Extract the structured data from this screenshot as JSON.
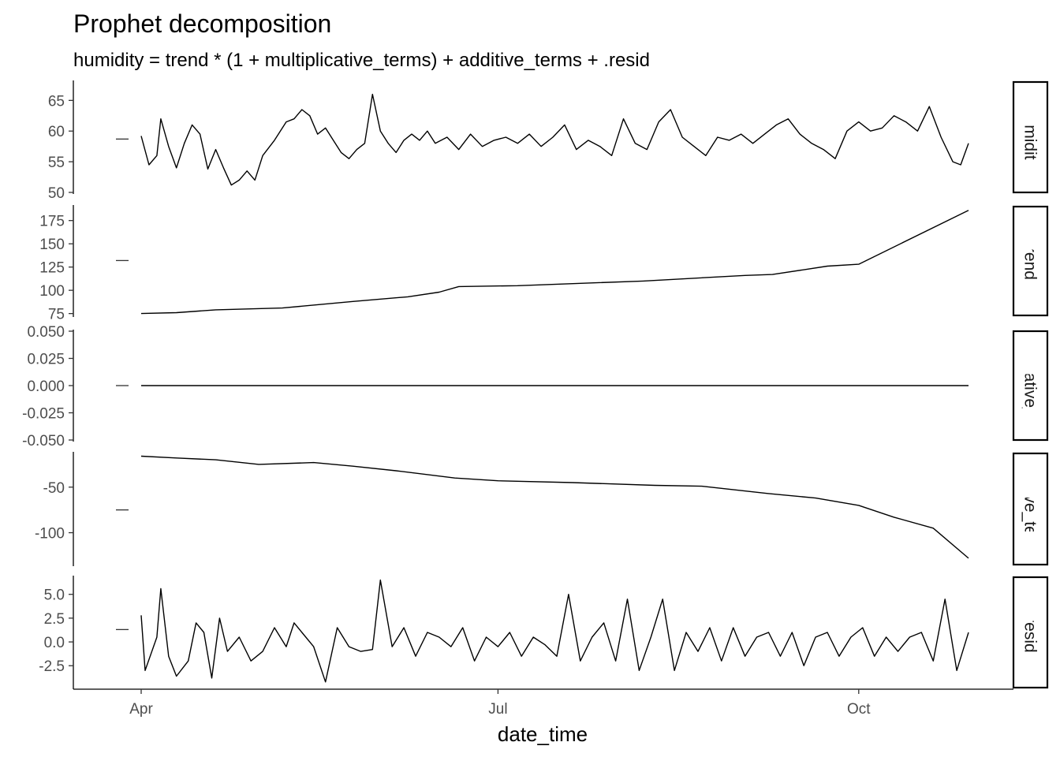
{
  "chart_data": {
    "type": "line",
    "title": "Prophet decomposition",
    "subtitle": "humidity = trend * (1 + multiplicative_terms) + additive_terms + .resid",
    "xlabel": "date_time",
    "x_range": [
      "2021-04-01",
      "2021-10-29"
    ],
    "x_ticks": [
      {
        "date": "2021-04-01",
        "label": "Apr"
      },
      {
        "date": "2021-07-01",
        "label": "Jul"
      },
      {
        "date": "2021-10-01",
        "label": "Oct"
      }
    ],
    "legend": "none",
    "grid": false,
    "facets": [
      {
        "strip": "humidity",
        "ylim": [
          50,
          68
        ],
        "y_ticks": [
          {
            "v": 50,
            "label": "50"
          },
          {
            "v": 55,
            "label": "55"
          },
          {
            "v": 60,
            "label": "60"
          },
          {
            "v": 65,
            "label": "65"
          }
        ],
        "range_marker": 58.7,
        "series": [
          {
            "x": [
              "2021-04-01",
              "2021-04-03",
              "2021-04-05",
              "2021-04-06",
              "2021-04-08",
              "2021-04-10",
              "2021-04-12",
              "2021-04-14",
              "2021-04-16",
              "2021-04-18",
              "2021-04-20",
              "2021-04-22",
              "2021-04-24",
              "2021-04-26",
              "2021-04-28",
              "2021-04-30",
              "2021-05-02",
              "2021-05-05",
              "2021-05-08",
              "2021-05-10",
              "2021-05-12",
              "2021-05-14",
              "2021-05-16",
              "2021-05-18",
              "2021-05-20",
              "2021-05-22",
              "2021-05-24",
              "2021-05-26",
              "2021-05-28",
              "2021-05-30",
              "2021-06-01",
              "2021-06-03",
              "2021-06-05",
              "2021-06-07",
              "2021-06-09",
              "2021-06-11",
              "2021-06-13",
              "2021-06-15",
              "2021-06-18",
              "2021-06-21",
              "2021-06-24",
              "2021-06-27",
              "2021-06-30",
              "2021-07-03",
              "2021-07-06",
              "2021-07-09",
              "2021-07-12",
              "2021-07-15",
              "2021-07-18",
              "2021-07-21",
              "2021-07-24",
              "2021-07-27",
              "2021-07-30",
              "2021-08-02",
              "2021-08-05",
              "2021-08-08",
              "2021-08-11",
              "2021-08-14",
              "2021-08-17",
              "2021-08-20",
              "2021-08-23",
              "2021-08-26",
              "2021-08-29",
              "2021-09-01",
              "2021-09-04",
              "2021-09-07",
              "2021-09-10",
              "2021-09-13",
              "2021-09-16",
              "2021-09-19",
              "2021-09-22",
              "2021-09-25",
              "2021-09-28",
              "2021-10-01",
              "2021-10-04",
              "2021-10-07",
              "2021-10-10",
              "2021-10-13",
              "2021-10-16",
              "2021-10-19",
              "2021-10-22",
              "2021-10-25",
              "2021-10-27",
              "2021-10-29"
            ],
            "y": [
              59.2,
              54.5,
              56.0,
              62.0,
              57.5,
              54.0,
              58.0,
              61.0,
              59.5,
              53.8,
              57.0,
              54.0,
              51.2,
              52.0,
              53.5,
              52.0,
              56.0,
              58.5,
              61.5,
              62.0,
              63.5,
              62.5,
              59.5,
              60.5,
              58.5,
              56.5,
              55.5,
              57.0,
              58.0,
              66.0,
              60.0,
              58.0,
              56.5,
              58.5,
              59.5,
              58.5,
              60.0,
              58.0,
              59.0,
              57.0,
              59.5,
              57.5,
              58.5,
              59.0,
              58.0,
              59.5,
              57.5,
              59.0,
              61.0,
              57.0,
              58.5,
              57.5,
              56.0,
              62.0,
              58.0,
              57.0,
              61.5,
              63.5,
              59.0,
              57.5,
              56.0,
              59.0,
              58.5,
              59.5,
              58.0,
              59.5,
              61.0,
              62.0,
              59.5,
              58.0,
              57.0,
              55.5,
              60.0,
              61.5,
              60.0,
              60.5,
              62.5,
              61.5,
              60.0,
              64.0,
              59.0,
              55.0,
              54.5,
              58.0
            ]
          }
        ]
      },
      {
        "strip": "trend",
        "ylim": [
          73,
          190
        ],
        "y_ticks": [
          {
            "v": 75,
            "label": "75"
          },
          {
            "v": 100,
            "label": "100"
          },
          {
            "v": 125,
            "label": "125"
          },
          {
            "v": 150,
            "label": "150"
          },
          {
            "v": 175,
            "label": "175"
          }
        ],
        "range_marker": 132,
        "series": [
          {
            "x": [
              "2021-04-01",
              "2021-04-10",
              "2021-04-20",
              "2021-05-07",
              "2021-05-25",
              "2021-06-08",
              "2021-06-16",
              "2021-06-21",
              "2021-07-06",
              "2021-08-07",
              "2021-09-02",
              "2021-09-09",
              "2021-09-23",
              "2021-10-01",
              "2021-10-29"
            ],
            "y": [
              75,
              76,
              79,
              81,
              88,
              93,
              98,
              104,
              105,
              110,
              116,
              117,
              126,
              128,
              186
            ]
          }
        ]
      },
      {
        "strip": "multiplicative_terms",
        "ylim": [
          -0.05,
          0.05
        ],
        "y_ticks": [
          {
            "v": -0.05,
            "label": "-0.050"
          },
          {
            "v": -0.025,
            "label": "-0.025"
          },
          {
            "v": 0,
            "label": "0.000"
          },
          {
            "v": 0.025,
            "label": "0.025"
          },
          {
            "v": 0.05,
            "label": "0.050"
          }
        ],
        "range_marker": 0,
        "series": [
          {
            "x": [
              "2021-04-01",
              "2021-10-29"
            ],
            "y": [
              0,
              0
            ]
          }
        ]
      },
      {
        "strip": "additive_terms",
        "ylim": [
          -135,
          -13
        ],
        "y_ticks": [
          {
            "v": -100,
            "label": "-100"
          },
          {
            "v": -50,
            "label": "-50"
          }
        ],
        "range_marker": -75,
        "series": [
          {
            "x": [
              "2021-04-01",
              "2021-04-10",
              "2021-04-20",
              "2021-05-01",
              "2021-05-15",
              "2021-05-25",
              "2021-06-05",
              "2021-06-20",
              "2021-07-01",
              "2021-07-20",
              "2021-08-10",
              "2021-08-22",
              "2021-09-08",
              "2021-09-20",
              "2021-10-01",
              "2021-10-10",
              "2021-10-20",
              "2021-10-29"
            ],
            "y": [
              -16,
              -18,
              -20,
              -25,
              -23,
              -27,
              -32,
              -40,
              -43,
              -45,
              -48,
              -49,
              -57,
              -62,
              -70,
              -83,
              -95,
              -128
            ]
          }
        ]
      },
      {
        "strip": ".resid",
        "ylim": [
          -4.8,
          6.8
        ],
        "y_ticks": [
          {
            "v": -2.5,
            "label": "-2.5"
          },
          {
            "v": 0,
            "label": "0.0"
          },
          {
            "v": 2.5,
            "label": "2.5"
          },
          {
            "v": 5,
            "label": "5.0"
          }
        ],
        "range_marker": 1.3,
        "series": [
          {
            "x": [
              "2021-04-01",
              "2021-04-02",
              "2021-04-05",
              "2021-04-06",
              "2021-04-08",
              "2021-04-10",
              "2021-04-13",
              "2021-04-15",
              "2021-04-17",
              "2021-04-19",
              "2021-04-21",
              "2021-04-23",
              "2021-04-26",
              "2021-04-29",
              "2021-05-02",
              "2021-05-05",
              "2021-05-08",
              "2021-05-10",
              "2021-05-12",
              "2021-05-15",
              "2021-05-18",
              "2021-05-21",
              "2021-05-24",
              "2021-05-27",
              "2021-05-30",
              "2021-06-01",
              "2021-06-04",
              "2021-06-07",
              "2021-06-10",
              "2021-06-13",
              "2021-06-16",
              "2021-06-19",
              "2021-06-22",
              "2021-06-25",
              "2021-06-28",
              "2021-07-01",
              "2021-07-04",
              "2021-07-07",
              "2021-07-10",
              "2021-07-13",
              "2021-07-16",
              "2021-07-19",
              "2021-07-22",
              "2021-07-25",
              "2021-07-28",
              "2021-07-31",
              "2021-08-03",
              "2021-08-06",
              "2021-08-09",
              "2021-08-12",
              "2021-08-15",
              "2021-08-18",
              "2021-08-21",
              "2021-08-24",
              "2021-08-27",
              "2021-08-30",
              "2021-09-02",
              "2021-09-05",
              "2021-09-08",
              "2021-09-11",
              "2021-09-14",
              "2021-09-17",
              "2021-09-20",
              "2021-09-23",
              "2021-09-26",
              "2021-09-29",
              "2021-10-02",
              "2021-10-05",
              "2021-10-08",
              "2021-10-11",
              "2021-10-14",
              "2021-10-17",
              "2021-10-20",
              "2021-10-23",
              "2021-10-26",
              "2021-10-29"
            ],
            "y": [
              2.8,
              -3.0,
              0.5,
              5.6,
              -1.5,
              -3.6,
              -2.0,
              2.0,
              1.0,
              -3.8,
              2.5,
              -1.0,
              0.5,
              -2.0,
              -1.0,
              1.5,
              -0.5,
              2.0,
              1.0,
              -0.5,
              -4.2,
              1.5,
              -0.5,
              -1.0,
              -0.8,
              6.5,
              -0.5,
              1.5,
              -1.5,
              1.0,
              0.5,
              -0.5,
              1.5,
              -2.0,
              0.5,
              -0.5,
              1.0,
              -1.5,
              0.5,
              -0.3,
              -1.5,
              5.0,
              -2.0,
              0.5,
              2.0,
              -2.0,
              4.5,
              -3.0,
              0.5,
              4.5,
              -3.0,
              1.0,
              -1.0,
              1.5,
              -2.0,
              1.5,
              -1.5,
              0.5,
              1.0,
              -1.5,
              1.0,
              -2.5,
              0.5,
              1.0,
              -1.5,
              0.5,
              1.5,
              -1.5,
              0.5,
              -1.0,
              0.5,
              1.0,
              -2.0,
              4.5,
              -3.0,
              1.0
            ]
          }
        ]
      }
    ]
  }
}
